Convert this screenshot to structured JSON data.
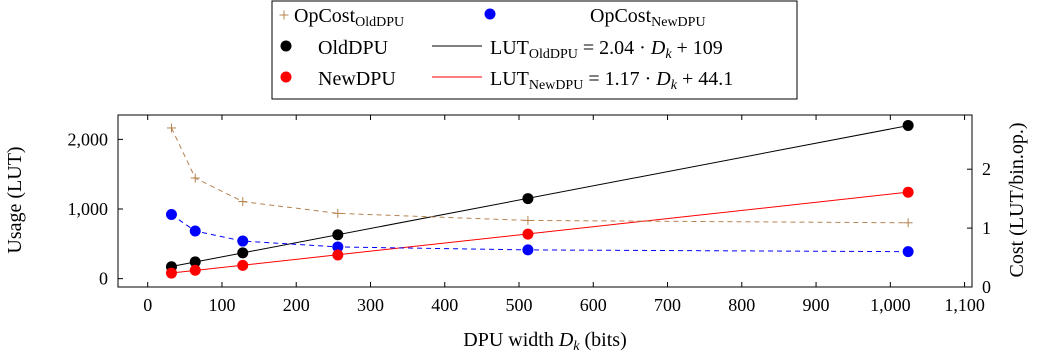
{
  "chart_data": {
    "type": "line",
    "xlabel": {
      "main": "DPU width ",
      "var": "D",
      "sub": "k",
      "unit": " (bits)"
    },
    "ylabel_left": "Usage (LUT)",
    "ylabel_right": "Cost (LUT/bin.op.)",
    "xlim": [
      -40,
      1110
    ],
    "ylim_left": [
      -120,
      2350
    ],
    "ylim_right": [
      0,
      2.92
    ],
    "x_ticks": [
      0,
      100,
      200,
      300,
      400,
      500,
      600,
      700,
      800,
      900,
      1000,
      1100
    ],
    "x_tick_labels": [
      "0",
      "100",
      "200",
      "300",
      "400",
      "500",
      "600",
      "700",
      "800",
      "900",
      "1,000",
      "1,100"
    ],
    "y_left_ticks": [
      0,
      1000,
      2000
    ],
    "y_left_tick_labels": [
      "0",
      "1,000",
      "2,000"
    ],
    "y_right_ticks": [
      1,
      2
    ],
    "y_right_tick_labels": [
      "1",
      "2"
    ],
    "y_right_zero_label": "0",
    "grid": false,
    "legend_position": "top-center",
    "colors": {
      "oldDPU": "#000000",
      "newDPU": "#ff0000",
      "opcostOld": "#b5834f",
      "opcostNew": "#0000ff"
    },
    "series": [
      {
        "key": "opcostOld",
        "axis": "right",
        "marker": "plus",
        "style": "dashed",
        "x": [
          32,
          64,
          128,
          256,
          512,
          1024
        ],
        "y": [
          2.7,
          1.85,
          1.45,
          1.25,
          1.13,
          1.09
        ]
      },
      {
        "key": "opcostNew",
        "axis": "right",
        "marker": "dot",
        "style": "dashed",
        "x": [
          32,
          64,
          128,
          256,
          512,
          1024
        ],
        "y": [
          1.23,
          0.95,
          0.78,
          0.68,
          0.63,
          0.6
        ]
      },
      {
        "key": "oldDPU",
        "axis": "left",
        "marker": "dot",
        "style": "none",
        "x": [
          32,
          64,
          128,
          256,
          512,
          1024
        ],
        "y": [
          170,
          240,
          370,
          630,
          1150,
          2200
        ]
      },
      {
        "key": "newDPU",
        "axis": "left",
        "marker": "dot",
        "style": "none",
        "x": [
          32,
          64,
          128,
          256,
          512,
          1024
        ],
        "y": [
          80,
          120,
          190,
          340,
          640,
          1240
        ]
      },
      {
        "key": "fitOld",
        "axis": "left",
        "marker": "none",
        "style": "solid",
        "color_key": "oldDPU",
        "x": [
          32,
          1024
        ],
        "y": [
          174,
          2198
        ]
      },
      {
        "key": "fitNew",
        "axis": "left",
        "marker": "none",
        "style": "solid",
        "color_key": "newDPU",
        "x": [
          32,
          1024
        ],
        "y": [
          81,
          1242
        ]
      }
    ],
    "legend": [
      {
        "marker": "plus",
        "color_key": "opcostOld",
        "base": "OpCost",
        "sub": "OldDPU"
      },
      {
        "marker": "dot",
        "color_key": "opcostNew",
        "base": "OpCost",
        "sub": "NewDPU"
      },
      {
        "marker": "dot",
        "color_key": "oldDPU",
        "text": "OldDPU"
      },
      {
        "marker": "line",
        "color_key": "oldDPU",
        "base": "LUT",
        "sub": "OldDPU",
        "eq": " = 2.04 · ",
        "var": "D",
        "varsub": "k",
        "tail": " + 109"
      },
      {
        "marker": "dot",
        "color_key": "newDPU",
        "text": "NewDPU"
      },
      {
        "marker": "line",
        "color_key": "newDPU",
        "base": "LUT",
        "sub": "NewDPU",
        "eq": " = 1.17 · ",
        "var": "D",
        "varsub": "k",
        "tail": " + 44.1"
      }
    ]
  }
}
